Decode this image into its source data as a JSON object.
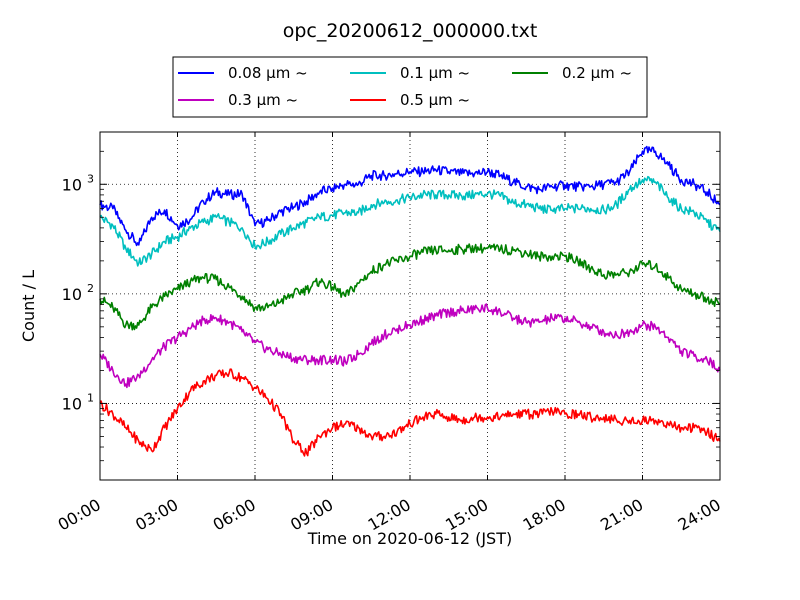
{
  "chart_data": {
    "type": "line",
    "title": "opc_20200612_000000.txt",
    "xlabel": "Time on 2020-06-12 (JST)",
    "ylabel": "Count / L",
    "xlim": [
      0,
      24
    ],
    "ylim": [
      2,
      3000
    ],
    "yscale": "log",
    "grid": true,
    "legend_position": "top-center",
    "x_tick_values": [
      0,
      3,
      6,
      9,
      12,
      15,
      18,
      21,
      24
    ],
    "x_tick_labels": [
      "00:00",
      "03:00",
      "06:00",
      "09:00",
      "12:00",
      "15:00",
      "18:00",
      "21:00",
      "24:00"
    ],
    "y_tick_values": [
      10,
      100,
      1000
    ],
    "y_tick_labels": [
      {
        "base": "10",
        "exp": "1"
      },
      {
        "base": "10",
        "exp": "2"
      },
      {
        "base": "10",
        "exp": "3"
      }
    ],
    "x": [
      0,
      0.5,
      1,
      1.5,
      2,
      2.5,
      3,
      3.5,
      4,
      4.5,
      5,
      5.5,
      6,
      6.5,
      7,
      7.5,
      8,
      8.5,
      9,
      9.5,
      10,
      10.5,
      11,
      11.5,
      12,
      12.5,
      13,
      13.5,
      14,
      14.5,
      15,
      15.5,
      16,
      16.5,
      17,
      17.5,
      18,
      18.5,
      19,
      19.5,
      20,
      20.5,
      21,
      21.5,
      22,
      22.5,
      23,
      23.5,
      24
    ],
    "series": [
      {
        "name": "0.08 µm ~",
        "color": "#0000ff",
        "values": [
          650,
          600,
          380,
          280,
          500,
          580,
          420,
          480,
          700,
          850,
          800,
          820,
          420,
          470,
          560,
          620,
          700,
          850,
          920,
          1000,
          1000,
          1200,
          1200,
          1250,
          1300,
          1300,
          1350,
          1300,
          1250,
          1250,
          1300,
          1200,
          1050,
          950,
          900,
          950,
          980,
          950,
          950,
          1000,
          1050,
          1300,
          2000,
          2000,
          1500,
          1100,
          1000,
          850,
          650
        ]
      },
      {
        "name": "0.1 µm ~",
        "color": "#00bfbf",
        "values": [
          500,
          420,
          260,
          190,
          230,
          300,
          330,
          400,
          450,
          500,
          450,
          400,
          270,
          300,
          350,
          400,
          450,
          500,
          520,
          550,
          550,
          650,
          680,
          720,
          750,
          800,
          800,
          800,
          780,
          800,
          820,
          780,
          680,
          650,
          600,
          580,
          600,
          600,
          600,
          580,
          650,
          900,
          1100,
          1050,
          750,
          600,
          550,
          450,
          370
        ]
      },
      {
        "name": "0.2 µm ~",
        "color": "#008000",
        "values": [
          90,
          75,
          52,
          52,
          75,
          95,
          110,
          130,
          140,
          135,
          115,
          95,
          75,
          75,
          85,
          100,
          110,
          130,
          115,
          95,
          125,
          160,
          185,
          200,
          220,
          240,
          250,
          250,
          255,
          260,
          260,
          255,
          250,
          235,
          220,
          220,
          220,
          200,
          170,
          150,
          150,
          160,
          185,
          180,
          140,
          110,
          100,
          90,
          82
        ]
      },
      {
        "name": "0.3 µm ~",
        "color": "#bf00bf",
        "values": [
          28,
          20,
          15,
          18,
          25,
          33,
          40,
          48,
          58,
          60,
          55,
          45,
          36,
          31,
          28,
          26,
          25,
          25,
          25,
          24,
          28,
          35,
          42,
          48,
          52,
          58,
          63,
          68,
          70,
          72,
          74,
          68,
          60,
          55,
          55,
          60,
          60,
          55,
          50,
          45,
          42,
          45,
          52,
          50,
          40,
          30,
          27,
          25,
          20
        ]
      },
      {
        "name": "0.5 µm ~",
        "color": "#ff0000",
        "values": [
          10,
          8,
          6,
          4.5,
          3.7,
          6,
          9,
          13,
          16,
          18,
          19,
          17,
          14,
          11,
          8,
          4.5,
          3.5,
          5,
          6,
          6.5,
          6,
          5,
          5,
          5.5,
          6.5,
          7.5,
          8,
          7.5,
          7,
          7.5,
          7.5,
          7.5,
          8,
          8,
          8,
          8.5,
          8,
          8,
          7.5,
          7.5,
          7,
          7,
          7,
          7,
          6.5,
          6,
          6,
          5.5,
          4.5
        ]
      }
    ]
  }
}
